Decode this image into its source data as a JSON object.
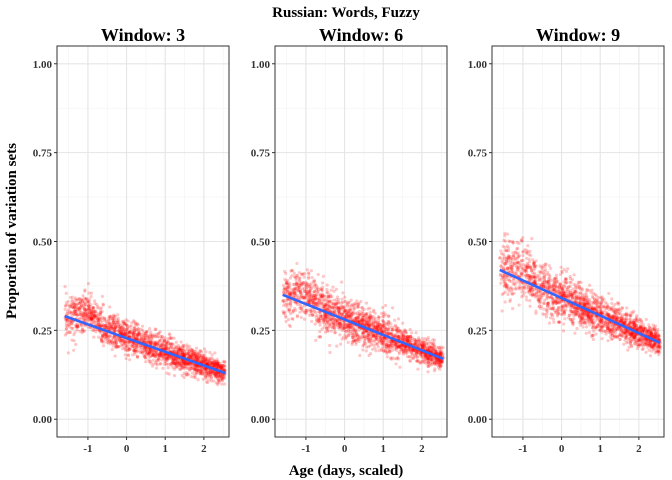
{
  "chart_data": {
    "type": "scatter",
    "title": "Russian: Words, Fuzzy",
    "xlabel": "Age (days, scaled)",
    "ylabel": "Proportion of variation sets",
    "xlim": [
      -1.8,
      2.65
    ],
    "ylim": [
      -0.05,
      1.05
    ],
    "xticks": [
      -1,
      0,
      1,
      2
    ],
    "yticks": [
      0.0,
      0.25,
      0.5,
      0.75,
      1.0
    ],
    "ytick_labels": [
      "0.00",
      "0.25",
      "0.50",
      "0.75",
      "1.00"
    ],
    "grid": true,
    "point_color": "#ff0000",
    "line_color": "#3366ff",
    "panels": [
      {
        "title": "Window: 3",
        "fit_line": {
          "x": [
            -1.6,
            2.55
          ],
          "y": [
            0.29,
            0.13
          ]
        },
        "points_approx": {
          "x_range": [
            -1.6,
            2.55
          ],
          "n": 2000,
          "spread_low_x": 0.03,
          "spread_high_x": 0.015,
          "early_hump": 0.03
        }
      },
      {
        "title": "Window: 6",
        "fit_line": {
          "x": [
            -1.6,
            2.55
          ],
          "y": [
            0.35,
            0.17
          ]
        },
        "points_approx": {
          "x_range": [
            -1.6,
            2.55
          ],
          "n": 2000,
          "spread_low_x": 0.04,
          "spread_high_x": 0.015,
          "early_hump": 0.03
        }
      },
      {
        "title": "Window: 9",
        "fit_line": {
          "x": [
            -1.6,
            2.55
          ],
          "y": [
            0.42,
            0.215
          ]
        },
        "points_approx": {
          "x_range": [
            -1.6,
            2.55
          ],
          "n": 2000,
          "spread_low_x": 0.045,
          "spread_high_x": 0.015,
          "early_hump": 0.03
        }
      }
    ]
  }
}
